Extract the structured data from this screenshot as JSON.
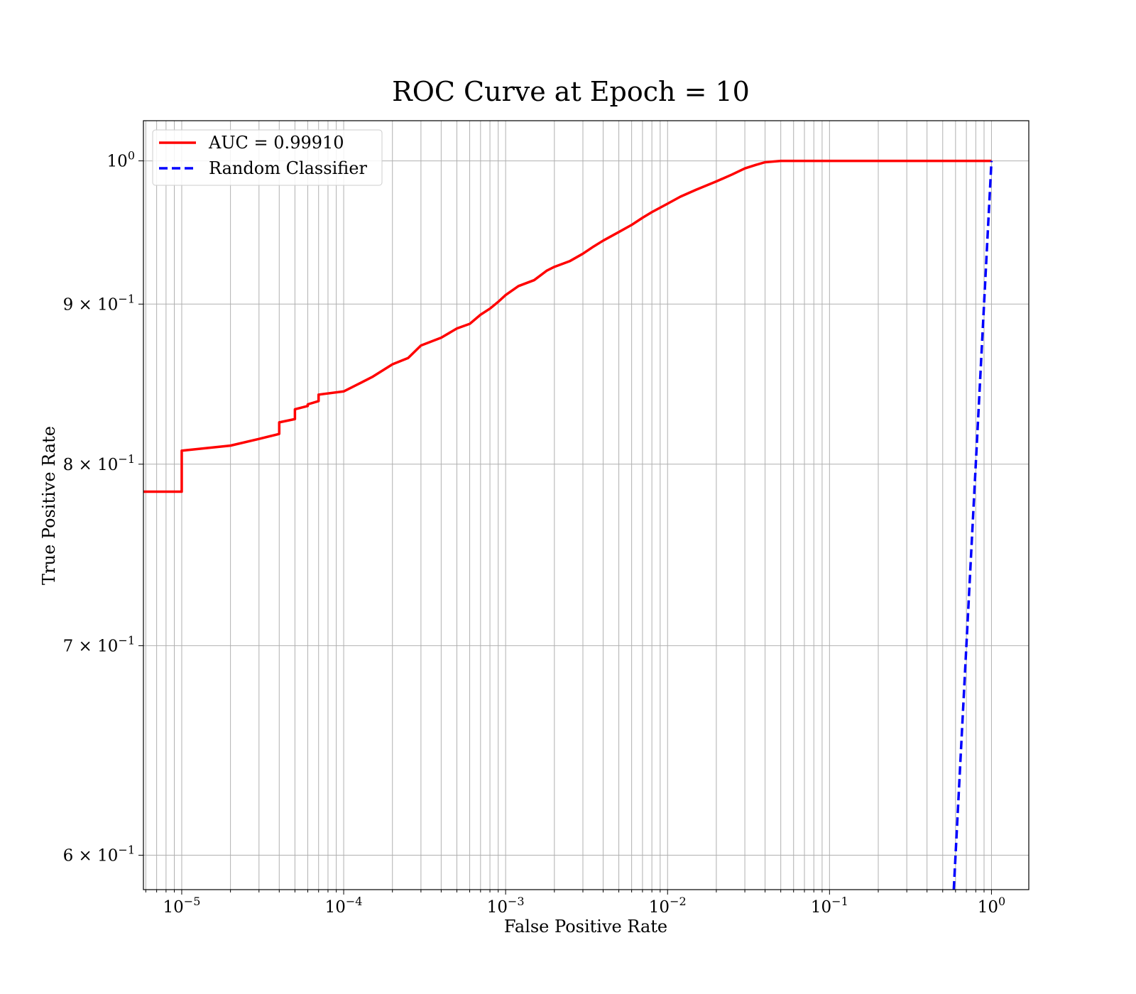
{
  "chart_data": {
    "type": "line",
    "title": "ROC Curve at Epoch = 10",
    "xlabel": "False Positive Rate",
    "ylabel": "True Positive Rate",
    "xscale": "log",
    "yscale": "log",
    "xlim": [
      5.8e-06,
      1.7
    ],
    "ylim": [
      0.585,
      1.03
    ],
    "grid": "major and minor",
    "legend_position": "top-left",
    "x_ticks": [
      {
        "value": 1e-05,
        "base": "10",
        "exp": "−5"
      },
      {
        "value": 0.0001,
        "base": "10",
        "exp": "−4"
      },
      {
        "value": 0.001,
        "base": "10",
        "exp": "−3"
      },
      {
        "value": 0.01,
        "base": "10",
        "exp": "−2"
      },
      {
        "value": 0.1,
        "base": "10",
        "exp": "−1"
      },
      {
        "value": 1,
        "base": "10",
        "exp": "0"
      }
    ],
    "y_ticks": [
      {
        "value": 1.0,
        "mant": "",
        "base": "10",
        "exp": "0"
      },
      {
        "value": 0.9,
        "mant": "9 × ",
        "base": "10",
        "exp": "−1"
      },
      {
        "value": 0.8,
        "mant": "8 × ",
        "base": "10",
        "exp": "−1"
      },
      {
        "value": 0.7,
        "mant": "7 × ",
        "base": "10",
        "exp": "−1"
      },
      {
        "value": 0.6,
        "mant": "6 × ",
        "base": "10",
        "exp": "−1"
      }
    ],
    "series": [
      {
        "name": "AUC = 0.99910",
        "color": "#ff0000",
        "style": "solid",
        "x": [
          5.8e-06,
          1e-05,
          1e-05,
          2e-05,
          3e-05,
          4e-05,
          4e-05,
          5e-05,
          5e-05,
          6e-05,
          6e-05,
          7e-05,
          7e-05,
          0.0001,
          0.00012,
          0.00015,
          0.0002,
          0.00025,
          0.0003,
          0.0004,
          0.0005,
          0.0006,
          0.0007,
          0.0008,
          0.0009,
          0.001,
          0.0012,
          0.0015,
          0.0018,
          0.002,
          0.0025,
          0.003,
          0.0035,
          0.004,
          0.005,
          0.006,
          0.007,
          0.008,
          0.01,
          0.012,
          0.015,
          0.02,
          0.025,
          0.03,
          0.035,
          0.04,
          0.05,
          0.06,
          0.1,
          0.3,
          1.0
        ],
        "y": [
          0.784,
          0.784,
          0.808,
          0.811,
          0.815,
          0.818,
          0.825,
          0.827,
          0.833,
          0.835,
          0.836,
          0.838,
          0.842,
          0.844,
          0.848,
          0.853,
          0.861,
          0.865,
          0.873,
          0.878,
          0.884,
          0.887,
          0.893,
          0.897,
          0.9015,
          0.906,
          0.912,
          0.916,
          0.9225,
          0.925,
          0.929,
          0.934,
          0.939,
          0.943,
          0.949,
          0.954,
          0.959,
          0.963,
          0.969,
          0.974,
          0.979,
          0.985,
          0.99,
          0.9945,
          0.997,
          0.999,
          1.0,
          1.0,
          1.0,
          1.0,
          1.0
        ]
      },
      {
        "name": "Random Classifier",
        "color": "#0000ff",
        "style": "dashed",
        "x": [
          0.585,
          0.7,
          0.8,
          0.9,
          1.0
        ],
        "y": [
          0.585,
          0.7,
          0.8,
          0.9,
          1.0
        ]
      }
    ]
  }
}
